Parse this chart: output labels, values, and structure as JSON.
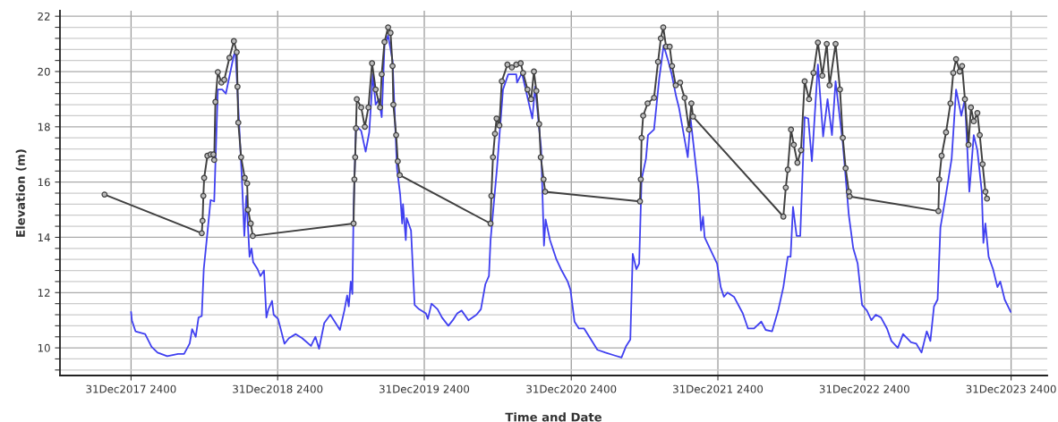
{
  "chart_data": {
    "type": "line",
    "xlabel": "Time and Date",
    "ylabel": "Elevation (m)",
    "xlim": [
      "2017-07-08",
      "2024-03-31"
    ],
    "xticks": [
      {
        "value": "2017-12-31T23:59",
        "label": "31Dec2017 2400"
      },
      {
        "value": "2018-12-31T23:59",
        "label": "31Dec2018 2400"
      },
      {
        "value": "2019-12-31T23:59",
        "label": "31Dec2019 2400"
      },
      {
        "value": "2020-12-31T23:59",
        "label": "31Dec2020 2400"
      },
      {
        "value": "2021-12-31T23:59",
        "label": "31Dec2021 2400"
      },
      {
        "value": "2022-12-31T23:59",
        "label": "31Dec2022 2400"
      },
      {
        "value": "2023-12-31T23:59",
        "label": "31Dec2023 2400"
      }
    ],
    "ylim": [
      9,
      22.2
    ],
    "yticks": [
      {
        "value": 9.2,
        "label": null
      },
      {
        "value": 9.6,
        "label": null
      },
      10,
      {
        "value": 10.4,
        "label": null
      },
      {
        "value": 10.8,
        "label": null
      },
      {
        "value": 11.2,
        "label": null
      },
      {
        "value": 11.6,
        "label": null
      },
      12,
      {
        "value": 12.4,
        "label": null
      },
      {
        "value": 12.8,
        "label": null
      },
      {
        "value": 13.2,
        "label": null
      },
      {
        "value": 13.6,
        "label": null
      },
      14,
      {
        "value": 14.4,
        "label": null
      },
      {
        "value": 14.8,
        "label": null
      },
      {
        "value": 15.2,
        "label": null
      },
      {
        "value": 15.6,
        "label": null
      },
      16,
      {
        "value": 16.4,
        "label": null
      },
      {
        "value": 16.8,
        "label": null
      },
      {
        "value": 17.2,
        "label": null
      },
      {
        "value": 17.6,
        "label": null
      },
      18,
      {
        "value": 18.4,
        "label": null
      },
      {
        "value": 18.8,
        "label": null
      },
      {
        "value": 19.2,
        "label": null
      },
      {
        "value": 19.6,
        "label": null
      },
      20,
      {
        "value": 20.4,
        "label": null
      },
      {
        "value": 20.8,
        "label": null
      },
      {
        "value": 21.2,
        "label": null
      },
      {
        "value": 21.6,
        "label": null
      },
      22
    ],
    "grid": true,
    "series": [
      {
        "color": "#4040f0",
        "marker": "none",
        "x": [
          "2018-01-01",
          "2018-01-03",
          "2018-01-12",
          "2018-02-05",
          "2018-02-21",
          "2018-03-08",
          "2018-04-01",
          "2018-04-28",
          "2018-05-13",
          "2018-05-27",
          "2018-06-02",
          "2018-06-11",
          "2018-06-18",
          "2018-06-26",
          "2018-07-01",
          "2018-07-10",
          "2018-07-18",
          "2018-07-27",
          "2018-08-05",
          "2018-08-16",
          "2018-08-25",
          "2018-09-14",
          "2018-09-18",
          "2018-10-04",
          "2018-10-10",
          "2018-10-15",
          "2018-10-23",
          "2018-10-28",
          "2018-11-01",
          "2018-11-12",
          "2018-11-19",
          "2018-11-28",
          "2018-12-04",
          "2018-12-09",
          "2018-12-18",
          "2018-12-22",
          "2019-01-02",
          "2019-01-18",
          "2019-01-29",
          "2019-02-15",
          "2019-03-03",
          "2019-03-25",
          "2019-04-05",
          "2019-04-14",
          "2019-04-27",
          "2019-05-12",
          "2019-05-23",
          "2019-06-05",
          "2019-06-16",
          "2019-06-23",
          "2019-06-27",
          "2019-07-02",
          "2019-07-06",
          "2019-07-09",
          "2019-07-15",
          "2019-07-28",
          "2019-08-08",
          "2019-08-17",
          "2019-08-26",
          "2019-09-02",
          "2019-09-10",
          "2019-09-17",
          "2019-09-24",
          "2019-10-03",
          "2019-10-14",
          "2019-10-25",
          "2019-11-02",
          "2019-11-07",
          "2019-11-09",
          "2019-11-16",
          "2019-11-18",
          "2019-11-29",
          "2019-12-08",
          "2019-12-19",
          "2020-01-05",
          "2020-01-10",
          "2020-01-19",
          "2020-02-03",
          "2020-02-14",
          "2020-03-01",
          "2020-03-12",
          "2020-03-23",
          "2020-04-03",
          "2020-04-20",
          "2020-05-10",
          "2020-05-21",
          "2020-06-01",
          "2020-06-10",
          "2020-06-14",
          "2020-06-30",
          "2020-07-15",
          "2020-07-28",
          "2020-08-17",
          "2020-08-19",
          "2020-08-31",
          "2020-09-15",
          "2020-09-26",
          "2020-10-03",
          "2020-10-18",
          "2020-10-25",
          "2020-10-29",
          "2020-11-09",
          "2020-11-25",
          "2020-12-08",
          "2020-12-23",
          "2020-12-30",
          "2021-01-09",
          "2021-01-20",
          "2021-02-02",
          "2021-02-17",
          "2021-03-07",
          "2021-03-27",
          "2021-04-20",
          "2021-05-06",
          "2021-05-17",
          "2021-05-28",
          "2021-06-03",
          "2021-06-12",
          "2021-06-19",
          "2021-06-25",
          "2021-07-06",
          "2021-07-11",
          "2021-07-26",
          "2021-08-08",
          "2021-08-19",
          "2021-08-30",
          "2021-09-08",
          "2021-09-19",
          "2021-09-26",
          "2021-10-18",
          "2021-10-25",
          "2021-11-14",
          "2021-11-20",
          "2021-11-25",
          "2021-11-29",
          "2021-12-12",
          "2021-12-30",
          "2022-01-08",
          "2022-01-16",
          "2022-01-25",
          "2022-02-10",
          "2022-03-04",
          "2022-03-17",
          "2022-04-01",
          "2022-04-19",
          "2022-04-30",
          "2022-05-16",
          "2022-05-31",
          "2022-06-13",
          "2022-06-24",
          "2022-07-01",
          "2022-07-07",
          "2022-07-16",
          "2022-07-25",
          "2022-08-05",
          "2022-08-14",
          "2022-08-23",
          "2022-09-07",
          "2022-09-20",
          "2022-10-01",
          "2022-10-12",
          "2022-10-21",
          "2022-11-08",
          "2022-11-23",
          "2022-12-04",
          "2022-12-15",
          "2022-12-26",
          "2023-01-07",
          "2023-01-18",
          "2023-01-29",
          "2023-02-11",
          "2023-02-26",
          "2023-03-09",
          "2023-03-25",
          "2023-04-07",
          "2023-04-27",
          "2023-05-10",
          "2023-05-23",
          "2023-06-05",
          "2023-06-14",
          "2023-06-23",
          "2023-07-02",
          "2023-07-09",
          "2023-07-24",
          "2023-08-06",
          "2023-08-17",
          "2023-08-30",
          "2023-09-08",
          "2023-09-19",
          "2023-09-30",
          "2023-10-09",
          "2023-10-20",
          "2023-10-24",
          "2023-10-29",
          "2023-11-06",
          "2023-11-17",
          "2023-11-28",
          "2023-12-05",
          "2023-12-16",
          "2023-12-31"
        ],
        "values": [
          11.3,
          11.0,
          10.6,
          10.5,
          10.04,
          9.83,
          9.7,
          9.78,
          9.78,
          10.16,
          10.68,
          10.4,
          11.1,
          11.15,
          12.85,
          14.15,
          15.35,
          15.3,
          19.35,
          19.35,
          19.2,
          20.6,
          20.7,
          16.1,
          14.05,
          15.5,
          13.3,
          13.6,
          13.1,
          12.85,
          12.6,
          12.8,
          11.1,
          11.4,
          11.7,
          11.2,
          11.05,
          10.15,
          10.35,
          10.5,
          10.35,
          10.07,
          10.4,
          9.97,
          10.9,
          11.2,
          10.95,
          10.65,
          11.35,
          11.9,
          11.5,
          12.4,
          11.95,
          15.0,
          18.05,
          17.85,
          17.1,
          17.8,
          19.9,
          18.8,
          19.0,
          18.35,
          20.95,
          21.3,
          20.4,
          16.5,
          15.55,
          14.5,
          15.2,
          13.9,
          14.7,
          14.25,
          11.55,
          11.4,
          11.25,
          11.05,
          11.6,
          11.4,
          11.1,
          10.8,
          11.0,
          11.25,
          11.35,
          11.0,
          11.2,
          11.4,
          12.3,
          12.6,
          13.9,
          16.5,
          19.35,
          19.9,
          19.9,
          19.6,
          19.95,
          19.0,
          18.3,
          19.45,
          17.2,
          13.7,
          14.65,
          13.9,
          13.2,
          12.8,
          12.4,
          12.1,
          10.95,
          10.7,
          10.7,
          10.35,
          9.93,
          9.83,
          9.72,
          9.65,
          10.05,
          10.3,
          13.4,
          12.85,
          13.05,
          16.1,
          16.85,
          17.7,
          17.9,
          19.75,
          20.95,
          20.4,
          19.9,
          19.1,
          18.7,
          16.9,
          18.3,
          15.7,
          14.25,
          14.75,
          14.0,
          13.6,
          13.05,
          12.2,
          11.85,
          12.0,
          11.85,
          11.25,
          10.7,
          10.7,
          10.95,
          10.65,
          10.6,
          11.35,
          12.2,
          13.3,
          13.3,
          15.1,
          14.05,
          14.05,
          18.35,
          18.3,
          16.75,
          20.25,
          17.65,
          19.0,
          17.7,
          19.65,
          17.4,
          14.8,
          13.6,
          13.05,
          11.55,
          11.35,
          11.0,
          11.2,
          11.1,
          10.7,
          10.25,
          10.0,
          10.5,
          10.2,
          10.15,
          9.83,
          10.6,
          10.25,
          11.5,
          11.75,
          14.35,
          15.65,
          16.85,
          19.35,
          18.4,
          19.0,
          15.65,
          17.7,
          17.15,
          15.65,
          13.8,
          14.5,
          13.3,
          12.85,
          12.2,
          12.4,
          11.75,
          11.3
        ]
      },
      {
        "color": "#404040",
        "marker": "circle",
        "x": [
          "2017-10-27",
          "2018-06-26",
          "2018-06-28",
          "2018-06-30",
          "2018-07-02",
          "2018-07-10",
          "2018-07-18",
          "2018-07-25",
          "2018-07-27",
          "2018-07-30",
          "2018-08-05",
          "2018-08-14",
          "2018-08-21",
          "2018-09-03",
          "2018-09-14",
          "2018-09-21",
          "2018-09-23",
          "2018-09-25",
          "2018-10-02",
          "2018-10-11",
          "2018-10-17",
          "2018-10-19",
          "2018-10-26",
          "2018-10-31",
          "2019-07-09",
          "2019-07-11",
          "2019-07-13",
          "2019-07-15",
          "2019-07-17",
          "2019-07-28",
          "2019-08-06",
          "2019-08-15",
          "2019-08-24",
          "2019-09-02",
          "2019-09-13",
          "2019-09-17",
          "2019-09-24",
          "2019-10-03",
          "2019-10-09",
          "2019-10-14",
          "2019-10-16",
          "2019-10-23",
          "2019-10-27",
          "2019-11-01",
          "2020-06-14",
          "2020-06-16",
          "2020-06-20",
          "2020-06-25",
          "2020-06-29",
          "2020-07-06",
          "2020-07-12",
          "2020-07-26",
          "2020-08-06",
          "2020-08-17",
          "2020-08-28",
          "2020-09-03",
          "2020-09-14",
          "2020-09-23",
          "2020-09-30",
          "2020-10-06",
          "2020-10-13",
          "2020-10-17",
          "2020-10-24",
          "2020-10-28",
          "2021-06-21",
          "2021-06-23",
          "2021-06-25",
          "2021-06-29",
          "2021-07-10",
          "2021-07-26",
          "2021-08-05",
          "2021-08-12",
          "2021-08-18",
          "2021-08-25",
          "2021-09-03",
          "2021-09-09",
          "2021-09-18",
          "2021-09-29",
          "2021-10-10",
          "2021-10-21",
          "2021-10-27",
          "2021-10-31",
          "2022-06-13",
          "2022-06-19",
          "2022-06-24",
          "2022-07-02",
          "2022-07-09",
          "2022-07-18",
          "2022-07-27",
          "2022-08-05",
          "2022-08-16",
          "2022-08-27",
          "2022-09-07",
          "2022-09-18",
          "2022-09-29",
          "2022-10-06",
          "2022-10-21",
          "2022-11-01",
          "2022-11-08",
          "2022-11-15",
          "2022-11-23",
          "2022-11-25",
          "2023-07-04",
          "2023-07-06",
          "2023-07-12",
          "2023-07-23",
          "2023-08-03",
          "2023-08-10",
          "2023-08-17",
          "2023-08-26",
          "2023-09-01",
          "2023-09-08",
          "2023-09-17",
          "2023-09-23",
          "2023-09-30",
          "2023-10-09",
          "2023-10-15",
          "2023-10-22",
          "2023-10-29",
          "2023-11-02"
        ],
        "values": [
          15.55,
          14.15,
          14.6,
          15.5,
          16.15,
          16.95,
          17.0,
          17.0,
          16.8,
          18.9,
          19.98,
          19.6,
          19.7,
          20.5,
          21.1,
          20.7,
          19.45,
          18.15,
          16.9,
          16.15,
          15.95,
          15.0,
          14.5,
          14.05,
          14.5,
          16.1,
          16.9,
          17.95,
          19.0,
          18.7,
          18.0,
          18.7,
          20.3,
          19.35,
          18.7,
          19.9,
          21.07,
          21.6,
          21.4,
          20.2,
          18.8,
          17.7,
          16.75,
          16.25,
          14.5,
          15.5,
          16.9,
          17.75,
          18.3,
          18.05,
          19.65,
          20.25,
          20.15,
          20.25,
          20.3,
          19.95,
          19.35,
          19.0,
          20.0,
          19.3,
          18.1,
          16.9,
          16.1,
          15.65,
          15.3,
          16.1,
          17.6,
          18.4,
          18.85,
          19.05,
          20.35,
          21.2,
          21.6,
          20.9,
          20.9,
          20.2,
          19.5,
          19.6,
          19.05,
          17.9,
          18.85,
          18.37,
          14.75,
          15.8,
          16.45,
          17.9,
          17.35,
          16.7,
          17.15,
          19.65,
          19.0,
          19.95,
          21.05,
          19.85,
          21.0,
          19.5,
          21.0,
          19.35,
          17.6,
          16.5,
          15.65,
          15.48,
          14.95,
          16.1,
          16.95,
          17.8,
          18.85,
          19.95,
          20.45,
          20.0,
          20.2,
          19.0,
          17.35,
          18.7,
          18.2,
          18.5,
          17.7,
          16.65,
          15.65,
          15.4
        ]
      }
    ]
  }
}
